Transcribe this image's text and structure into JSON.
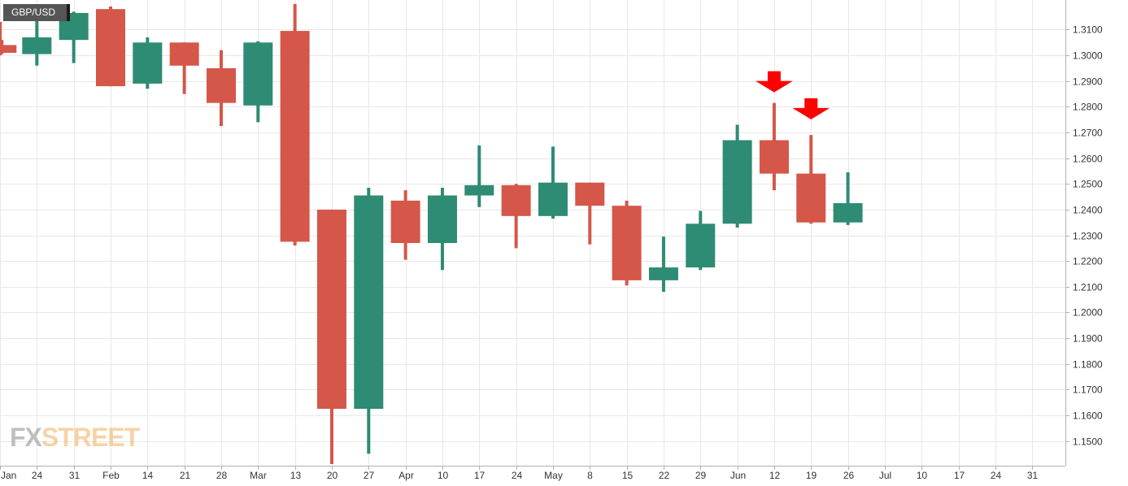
{
  "symbol": "GBP/USD",
  "logo": {
    "fx": "FX",
    "street": "STREET"
  },
  "colors": {
    "up": "#2e8b74",
    "down": "#d4574a",
    "grid": "#e8e8e8",
    "marker": "#ff0000",
    "axis": "#b0b0b0"
  },
  "chart_data": {
    "type": "candlestick",
    "title": "",
    "xlabel": "",
    "ylabel": "",
    "ylim": [
      1.142,
      1.3165
    ],
    "yticks": [
      1.15,
      1.16,
      1.17,
      1.18,
      1.19,
      1.2,
      1.21,
      1.22,
      1.23,
      1.24,
      1.25,
      1.26,
      1.27,
      1.28,
      1.29,
      1.3,
      1.31
    ],
    "ytick_labels": [
      "1.1500",
      "1.1600",
      "1.1700",
      "1.1800",
      "1.1900",
      "1.2000",
      "1.2100",
      "1.2200",
      "1.2300",
      "1.2400",
      "1.2500",
      "1.2600",
      "1.2700",
      "1.2800",
      "1.2900",
      "1.3000",
      "1.3100"
    ],
    "grid": true,
    "xticks": [
      {
        "i": 0,
        "label": "Jan"
      },
      {
        "i": 1,
        "label": "24"
      },
      {
        "i": 2,
        "label": "31"
      },
      {
        "i": 3,
        "label": "Feb"
      },
      {
        "i": 4,
        "label": "14"
      },
      {
        "i": 5,
        "label": "21"
      },
      {
        "i": 6,
        "label": "28"
      },
      {
        "i": 7,
        "label": "Mar"
      },
      {
        "i": 8,
        "label": "13"
      },
      {
        "i": 9,
        "label": "20"
      },
      {
        "i": 10,
        "label": "27"
      },
      {
        "i": 11,
        "label": "Apr"
      },
      {
        "i": 12,
        "label": "10"
      },
      {
        "i": 13,
        "label": "17"
      },
      {
        "i": 14,
        "label": "24"
      },
      {
        "i": 15,
        "label": "May"
      },
      {
        "i": 16,
        "label": "8"
      },
      {
        "i": 17,
        "label": "15"
      },
      {
        "i": 18,
        "label": "22"
      },
      {
        "i": 19,
        "label": "29"
      },
      {
        "i": 20,
        "label": "Jun"
      },
      {
        "i": 21,
        "label": "12"
      },
      {
        "i": 22,
        "label": "19"
      },
      {
        "i": 23,
        "label": "26"
      },
      {
        "i": 24,
        "label": "Jul"
      },
      {
        "i": 25,
        "label": "10"
      },
      {
        "i": 26,
        "label": "17"
      },
      {
        "i": 27,
        "label": "24"
      },
      {
        "i": 28,
        "label": "31"
      }
    ],
    "candles": [
      {
        "i": -0.35,
        "open": 1.313,
        "high": 1.314,
        "low": 1.2955,
        "close": 1.3
      },
      {
        "i": 0.05,
        "open": 1.304,
        "high": 1.306,
        "low": 1.3005,
        "close": 1.301
      },
      {
        "i": 1,
        "open": 1.3005,
        "high": 1.3155,
        "low": 1.296,
        "close": 1.307
      },
      {
        "i": 2,
        "open": 1.306,
        "high": 1.317,
        "low": 1.297,
        "close": 1.3165
      },
      {
        "i": 3,
        "open": 1.318,
        "high": 1.319,
        "low": 1.288,
        "close": 1.288
      },
      {
        "i": 4,
        "open": 1.289,
        "high": 1.307,
        "low": 1.287,
        "close": 1.305
      },
      {
        "i": 5,
        "open": 1.305,
        "high": 1.305,
        "low": 1.285,
        "close": 1.296
      },
      {
        "i": 6,
        "open": 1.295,
        "high": 1.302,
        "low": 1.2725,
        "close": 1.2815
      },
      {
        "i": 7,
        "open": 1.2805,
        "high": 1.3055,
        "low": 1.274,
        "close": 1.305
      },
      {
        "i": 8,
        "open": 1.3095,
        "high": 1.32,
        "low": 1.226,
        "close": 1.2275
      },
      {
        "i": 9,
        "open": 1.24,
        "high": 1.24,
        "low": 1.141,
        "close": 1.1625
      },
      {
        "i": 10,
        "open": 1.1625,
        "high": 1.2485,
        "low": 1.145,
        "close": 1.2455
      },
      {
        "i": 11,
        "open": 1.2435,
        "high": 1.2475,
        "low": 1.2205,
        "close": 1.227
      },
      {
        "i": 12,
        "open": 1.227,
        "high": 1.2485,
        "low": 1.2165,
        "close": 1.2455
      },
      {
        "i": 13,
        "open": 1.2455,
        "high": 1.265,
        "low": 1.241,
        "close": 1.2495
      },
      {
        "i": 14,
        "open": 1.2495,
        "high": 1.25,
        "low": 1.225,
        "close": 1.2375
      },
      {
        "i": 15,
        "open": 1.2375,
        "high": 1.2645,
        "low": 1.2365,
        "close": 1.2505
      },
      {
        "i": 16,
        "open": 1.2505,
        "high": 1.2505,
        "low": 1.2265,
        "close": 1.2415
      },
      {
        "i": 17,
        "open": 1.2415,
        "high": 1.2435,
        "low": 1.2105,
        "close": 1.2125
      },
      {
        "i": 18,
        "open": 1.2125,
        "high": 1.2295,
        "low": 1.208,
        "close": 1.2175
      },
      {
        "i": 19,
        "open": 1.2175,
        "high": 1.2395,
        "low": 1.2165,
        "close": 1.2345
      },
      {
        "i": 20,
        "open": 1.2345,
        "high": 1.273,
        "low": 1.233,
        "close": 1.267
      },
      {
        "i": 21,
        "open": 1.267,
        "high": 1.2815,
        "low": 1.2475,
        "close": 1.254
      },
      {
        "i": 22,
        "open": 1.254,
        "high": 1.269,
        "low": 1.2345,
        "close": 1.235
      },
      {
        "i": 23,
        "open": 1.235,
        "high": 1.2545,
        "low": 1.234,
        "close": 1.2425
      }
    ],
    "markers": [
      {
        "i": 21,
        "y": 1.2875,
        "shape": "down-arrow"
      },
      {
        "i": 22,
        "y": 1.277,
        "shape": "down-arrow"
      }
    ]
  }
}
